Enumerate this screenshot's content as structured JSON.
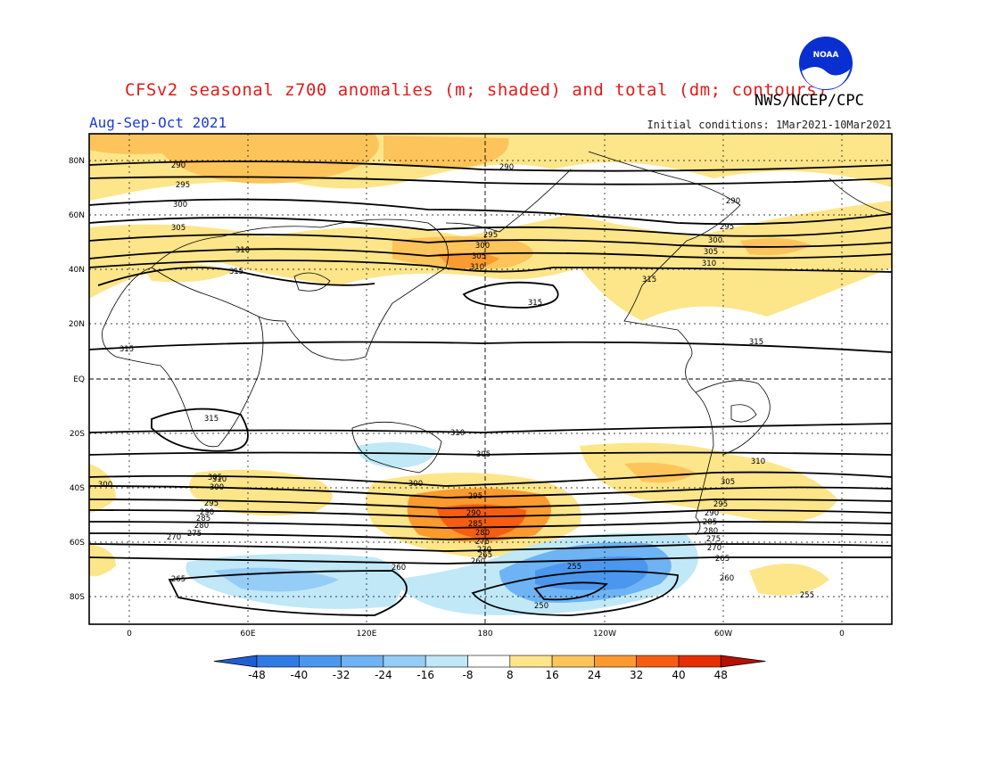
{
  "header": {
    "title": "CFSv2 seasonal z700 anomalies (m; shaded) and total (dm; contours)",
    "agency": "NWS/NCEP/CPC",
    "period": "Aug-Sep-Oct 2021",
    "initial_conditions": "Initial conditions: 1Mar2021-10Mar2021",
    "logo_text": "NOAA"
  },
  "map": {
    "lat_labels": [
      "80N",
      "60N",
      "40N",
      "20N",
      "EQ",
      "20S",
      "40S",
      "60S",
      "80S"
    ],
    "lon_labels": [
      "0",
      "60E",
      "120E",
      "180",
      "120W",
      "60W",
      "0"
    ],
    "contour_labels": [
      "290",
      "295",
      "300",
      "305",
      "310",
      "315",
      "290",
      "295",
      "300",
      "305",
      "310",
      "315",
      "290",
      "295",
      "300",
      "305",
      "310",
      "315",
      "315",
      "315",
      "315",
      "310",
      "305",
      "300",
      "295",
      "290",
      "285",
      "280",
      "275",
      "270",
      "265",
      "260",
      "255",
      "250",
      "305",
      "310",
      "300",
      "295",
      "290",
      "285",
      "280",
      "275",
      "270",
      "265",
      "260",
      "255",
      "300",
      "305",
      "310",
      "295",
      "290",
      "285",
      "280",
      "275",
      "270",
      "265",
      "260"
    ]
  },
  "colorbar": {
    "ticks": [
      "-48",
      "-40",
      "-32",
      "-24",
      "-16",
      "-8",
      "8",
      "16",
      "24",
      "32",
      "40",
      "48"
    ],
    "colors": [
      "#1f5fd6",
      "#2f7be5",
      "#4b97ee",
      "#6eb3f3",
      "#96cdf7",
      "#c0e8f7",
      "#ffffff",
      "#fde58a",
      "#fcc45a",
      "#fb9a2e",
      "#f65d12",
      "#e52d06",
      "#b70f00"
    ]
  },
  "chart_data": {
    "type": "heatmap",
    "title": "CFSv2 seasonal z700 anomalies (m; shaded) and total (dm; contours)",
    "period": "Aug-Sep-Oct 2021",
    "anomaly_range": [
      -48,
      48
    ],
    "anomaly_levels": [
      -48,
      -40,
      -32,
      -24,
      -16,
      -8,
      8,
      16,
      24,
      32,
      40,
      48
    ],
    "contour_levels_dm": [
      250,
      255,
      260,
      265,
      270,
      275,
      280,
      285,
      290,
      295,
      300,
      305,
      310,
      315
    ],
    "max_positive_anomaly_region": "South Pacific near 180, 50S",
    "max_negative_anomaly_region": "South Pacific near 120W, 70S"
  }
}
